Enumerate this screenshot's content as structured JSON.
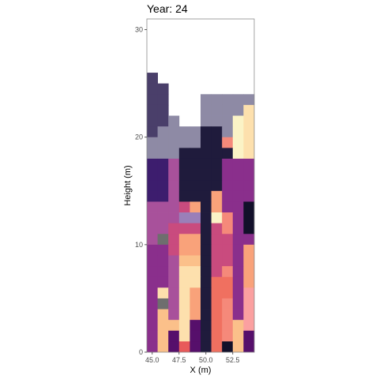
{
  "chart_data": {
    "type": "heatmap",
    "title": "Year: 24",
    "xlabel": "X (m)",
    "ylabel": "Height (m)",
    "xlim": [
      44.5,
      54.5
    ],
    "ylim": [
      0,
      31
    ],
    "x_ticks": [
      45.0,
      47.5,
      50.0,
      52.5
    ],
    "x_tick_labels": [
      "45.0",
      "47.5",
      "50.0",
      "52.5"
    ],
    "y_ticks": [
      0,
      10,
      20,
      30
    ],
    "y_tick_labels": [
      "0",
      "10",
      "20",
      "30"
    ],
    "grid": false,
    "legend": "none",
    "cell_width": 1,
    "cell_height": 1,
    "columns_x": [
      45,
      46,
      47,
      48,
      49,
      50,
      51,
      52,
      53,
      54
    ],
    "palette": {
      "A": "#4a3f6a",
      "B": "#8e8aa5",
      "C": "#1f1b3c",
      "D": "#3d1d6e",
      "E": "#8a2f8c",
      "F": "#a8519b",
      "G": "#c94b7e",
      "H": "#f9a27a",
      "I": "#fde0ad",
      "J": "#f07060",
      "K": "#6e6e6e",
      "L": "#fbf3c6",
      "M": "#f5897a",
      "N": "#560f6b",
      "O": "#12102a",
      "P": "#9a7fb8",
      "Q": "#fbc08a",
      "R": "#e85a5a",
      "S": "#fba0a0"
    },
    "rows_top_down": [
      "A.........",
      "AA........",
      "AA...BBBBB",
      "AA...BBBBI",
      "AAB..BBBLI",
      "ABBBBCCBLI",
      "BBBBBCCMLI",
      "BBBCCCCCLI",
      "DDFCCCCEEE",
      "DDFCCCCEEE",
      "DDFCCCCEEE",
      "DDFCCCHEEE",
      "FFFGHCHEEO",
      "FFFPPCLMEO",
      "FFGGGCGMEO",
      "FKGHHCGGEE",
      "EEGHHCGGEH",
      "EEFQQCGGEH",
      "EEFIICGMEH",
      "EEFIICJJEH",
      "EIFIHCJJES",
      "EKFIHCJMES",
      "EQFIHCJMES",
      "EQQINCJMQS",
      "EQNINCJMQN",
      "EQNRNCJOQN"
    ]
  }
}
